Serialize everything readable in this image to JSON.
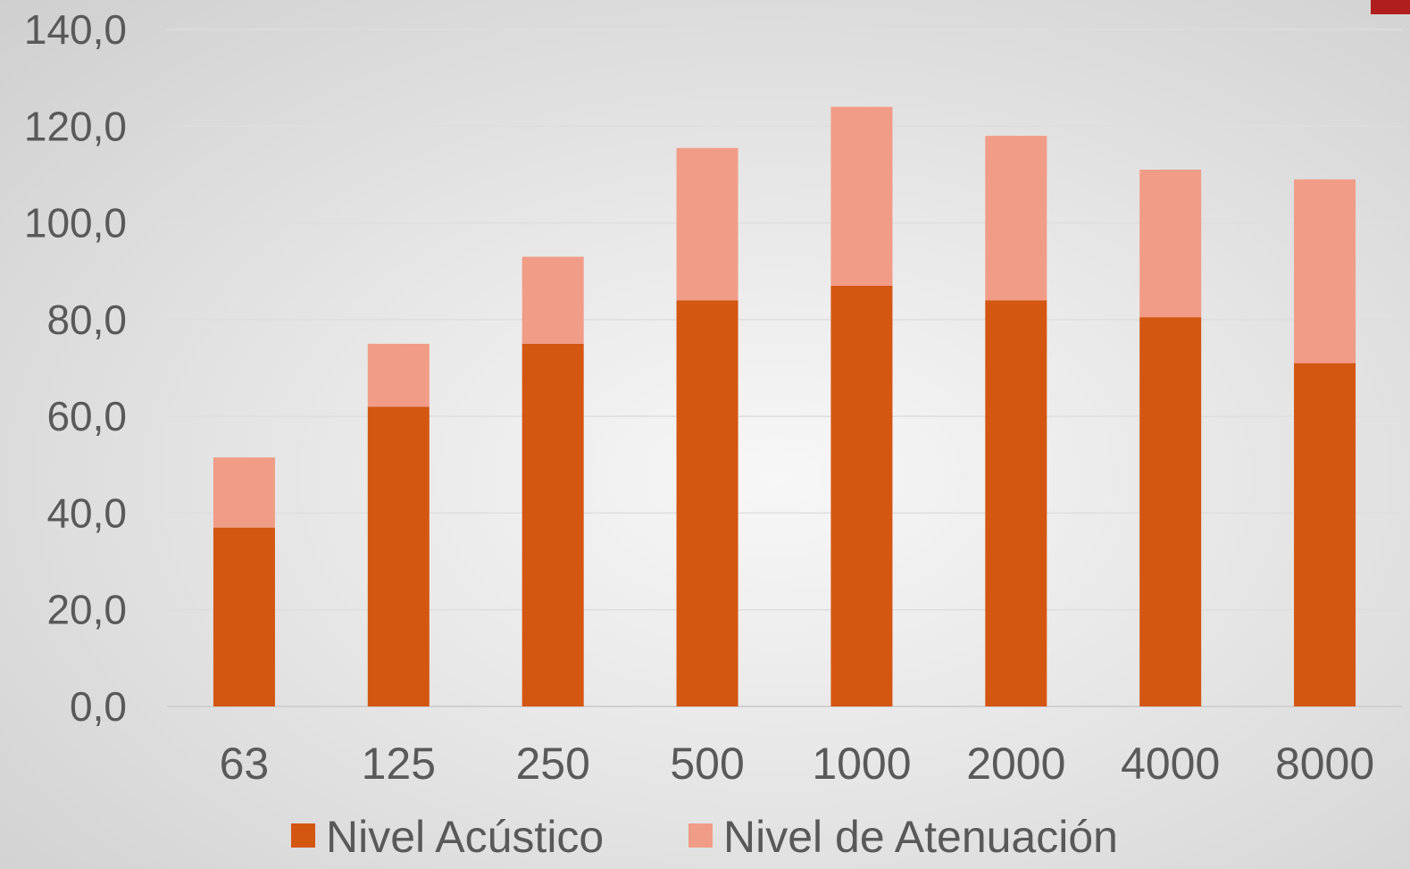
{
  "chart_data": {
    "type": "bar",
    "stacked": true,
    "categories": [
      "63",
      "125",
      "250",
      "500",
      "1000",
      "2000",
      "4000",
      "8000"
    ],
    "series": [
      {
        "name": "Nivel Acústico",
        "color": "#d35611",
        "values": [
          37.0,
          62.0,
          75.0,
          84.0,
          87.0,
          84.0,
          80.5,
          71.0
        ]
      },
      {
        "name": "Nivel de Atenuación",
        "color": "#f19c87",
        "values": [
          14.5,
          13.0,
          18.0,
          31.5,
          37.0,
          34.0,
          30.5,
          38.0
        ]
      }
    ],
    "y_ticks": [
      "0,0",
      "20,0",
      "40,0",
      "60,0",
      "80,0",
      "100,0",
      "120,0",
      "140,0"
    ],
    "ylim": [
      0,
      140
    ],
    "grid": true,
    "legend_position": "bottom"
  },
  "accent_color": "#b01e1e"
}
